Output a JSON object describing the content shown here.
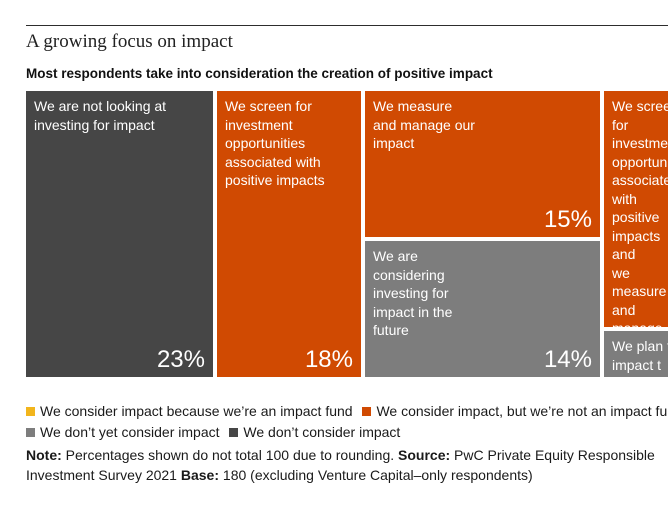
{
  "title": "A growing focus on impact",
  "subtitle": "Most respondents take into consideration the creation of positive impact",
  "colors": {
    "impact_fund": "#f2b51c",
    "consider_not_fund": "#d04a02",
    "dont_yet": "#7d7d7d",
    "dont": "#464646"
  },
  "legend": {
    "items": [
      {
        "label": "We consider impact because we’re an impact fund",
        "color": "#f2b51c"
      },
      {
        "label": "We consider impact, but we’re not an impact fund",
        "color": "#d04a02"
      },
      {
        "label": "We don’t yet consider impact",
        "color": "#7d7d7d"
      },
      {
        "label": "We don’t consider impact",
        "color": "#464646"
      }
    ]
  },
  "note": {
    "note_label": "Note:",
    "note_text": "Percentages shown do not total 100 due to rounding.",
    "source_label": "Source:",
    "source_text": "PwC Private Equity Responsible Investment Survey 2021",
    "base_label": "Base:",
    "base_text": "180 (excluding Venture Capital–only respondents)"
  },
  "chart_data": {
    "type": "treemap",
    "title": "A growing focus on impact",
    "subtitle": "Most respondents take into consideration the creation of positive impact",
    "unit": "%",
    "cells": [
      {
        "label": "We are not looking at\ninvesting for impact",
        "value": 23,
        "value_label": "23%",
        "category": "We don’t consider impact",
        "color": "#464646"
      },
      {
        "label": "We screen for\ninvestment\nopportunities\nassociated with\npositive impacts",
        "value": 18,
        "value_label": "18%",
        "category": "We consider impact, but we’re not an impact fund",
        "color": "#d04a02"
      },
      {
        "label": "We measure\nand manage our\nimpact",
        "value": 15,
        "value_label": "15%",
        "category": "We consider impact, but we’re not an impact fund",
        "color": "#d04a02"
      },
      {
        "label": "We are\nconsidering\ninvesting for\nimpact in the\nfuture",
        "value": 14,
        "value_label": "14%",
        "category": "We don’t yet consider impact",
        "color": "#7d7d7d"
      },
      {
        "label": "We screen for\ninvestment\nopportunities\nassociated\nwith positive\nimpacts and\nwe measure\nand manage\nimpact",
        "value": null,
        "value_label": "",
        "category": "We consider impact, but we’re not an impact fund",
        "color": "#d04a02"
      },
      {
        "label": "We plan to\nimpact t",
        "value": null,
        "value_label": "",
        "category": "We don’t yet consider impact",
        "color": "#7d7d7d"
      }
    ]
  }
}
